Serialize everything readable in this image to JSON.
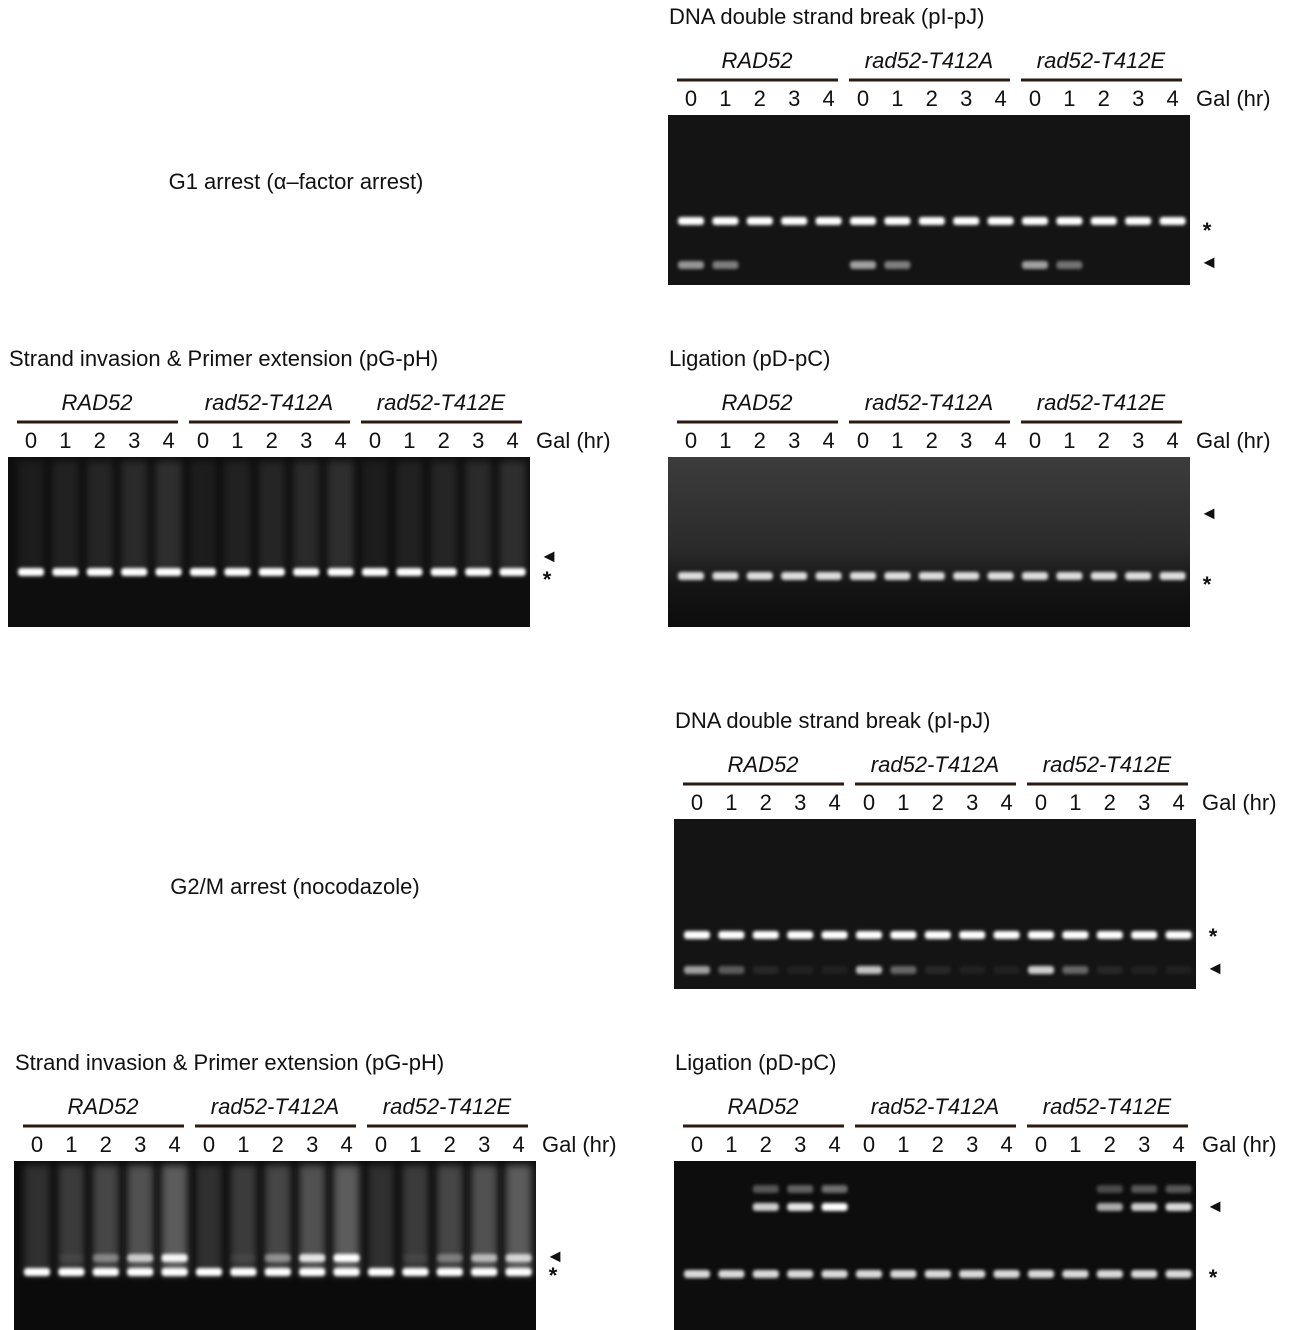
{
  "figure": {
    "sections": [
      {
        "label": "G1 arrest (α–factor arrest)",
        "gels": [
          {
            "title": "DNA double strand break (pI-pJ)",
            "groups": [
              {
                "name": "RAD52",
                "lanes": [
                  "0",
                  "1",
                  "2",
                  "3",
                  "4"
                ]
              },
              {
                "name": "rad52-T412A",
                "lanes": [
                  "0",
                  "1",
                  "2",
                  "3",
                  "4"
                ]
              },
              {
                "name": "rad52-T412E",
                "lanes": [
                  "0",
                  "1",
                  "2",
                  "3",
                  "4"
                ]
              }
            ],
            "axis_label": "Gal (hr)",
            "markers": [
              "*",
              "◄"
            ]
          },
          {
            "title": "Strand invasion & Primer extension (pG-pH)",
            "groups": [
              {
                "name": "RAD52",
                "lanes": [
                  "0",
                  "1",
                  "2",
                  "3",
                  "4"
                ]
              },
              {
                "name": "rad52-T412A",
                "lanes": [
                  "0",
                  "1",
                  "2",
                  "3",
                  "4"
                ]
              },
              {
                "name": "rad52-T412E",
                "lanes": [
                  "0",
                  "1",
                  "2",
                  "3",
                  "4"
                ]
              }
            ],
            "axis_label": "Gal (hr)",
            "markers": [
              "*",
              "◄"
            ]
          },
          {
            "title": "Ligation (pD-pC)",
            "groups": [
              {
                "name": "RAD52",
                "lanes": [
                  "0",
                  "1",
                  "2",
                  "3",
                  "4"
                ]
              },
              {
                "name": "rad52-T412A",
                "lanes": [
                  "0",
                  "1",
                  "2",
                  "3",
                  "4"
                ]
              },
              {
                "name": "rad52-T412E",
                "lanes": [
                  "0",
                  "1",
                  "2",
                  "3",
                  "4"
                ]
              }
            ],
            "axis_label": "Gal (hr)",
            "markers": [
              "*",
              "◄"
            ]
          }
        ]
      },
      {
        "label": "G2/M arrest (nocodazole)",
        "gels": [
          {
            "title": "DNA double strand break (pI-pJ)",
            "groups": [
              {
                "name": "RAD52",
                "lanes": [
                  "0",
                  "1",
                  "2",
                  "3",
                  "4"
                ]
              },
              {
                "name": "rad52-T412A",
                "lanes": [
                  "0",
                  "1",
                  "2",
                  "3",
                  "4"
                ]
              },
              {
                "name": "rad52-T412E",
                "lanes": [
                  "0",
                  "1",
                  "2",
                  "3",
                  "4"
                ]
              }
            ],
            "axis_label": "Gal (hr)",
            "markers": [
              "*",
              "◄"
            ]
          },
          {
            "title": "Strand invasion & Primer extension (pG-pH)",
            "groups": [
              {
                "name": "RAD52",
                "lanes": [
                  "0",
                  "1",
                  "2",
                  "3",
                  "4"
                ]
              },
              {
                "name": "rad52-T412A",
                "lanes": [
                  "0",
                  "1",
                  "2",
                  "3",
                  "4"
                ]
              },
              {
                "name": "rad52-T412E",
                "lanes": [
                  "0",
                  "1",
                  "2",
                  "3",
                  "4"
                ]
              }
            ],
            "axis_label": "Gal (hr)",
            "markers": [
              "*",
              "◄"
            ]
          },
          {
            "title": "Ligation (pD-pC)",
            "groups": [
              {
                "name": "RAD52",
                "lanes": [
                  "0",
                  "1",
                  "2",
                  "3",
                  "4"
                ]
              },
              {
                "name": "rad52-T412A",
                "lanes": [
                  "0",
                  "1",
                  "2",
                  "3",
                  "4"
                ]
              },
              {
                "name": "rad52-T412E",
                "lanes": [
                  "0",
                  "1",
                  "2",
                  "3",
                  "4"
                ]
              }
            ],
            "axis_label": "Gal (hr)",
            "markers": [
              "*",
              "◄"
            ]
          }
        ]
      }
    ]
  }
}
